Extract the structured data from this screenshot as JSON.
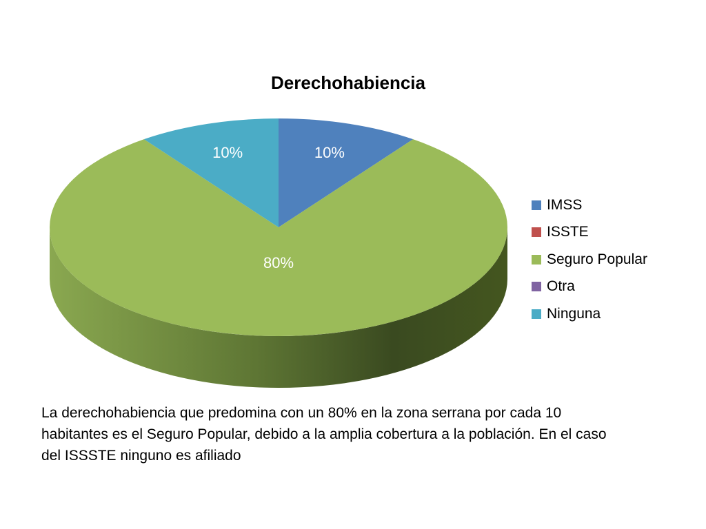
{
  "chart_data": {
    "type": "pie",
    "title": "Derechohabiencia",
    "categories": [
      "IMSS",
      "ISSTE",
      "Seguro Popular",
      "Otra",
      "Ninguna"
    ],
    "values": [
      10,
      0,
      80,
      0,
      10
    ],
    "data_labels": [
      "10%",
      "",
      "80%",
      "",
      "10%"
    ],
    "colors": [
      "#4f81bd",
      "#c0504d",
      "#9bbb59",
      "#8064a2",
      "#4bacc6"
    ],
    "style": "3d",
    "legend_position": "right"
  },
  "caption": {
    "text": "La derechohabiencia que predomina con un 80% en la zona serrana por cada 10 habitantes es el Seguro Popular, debido a la amplia cobertura a la población. En el caso del ISSSTE ninguno es afiliado"
  }
}
